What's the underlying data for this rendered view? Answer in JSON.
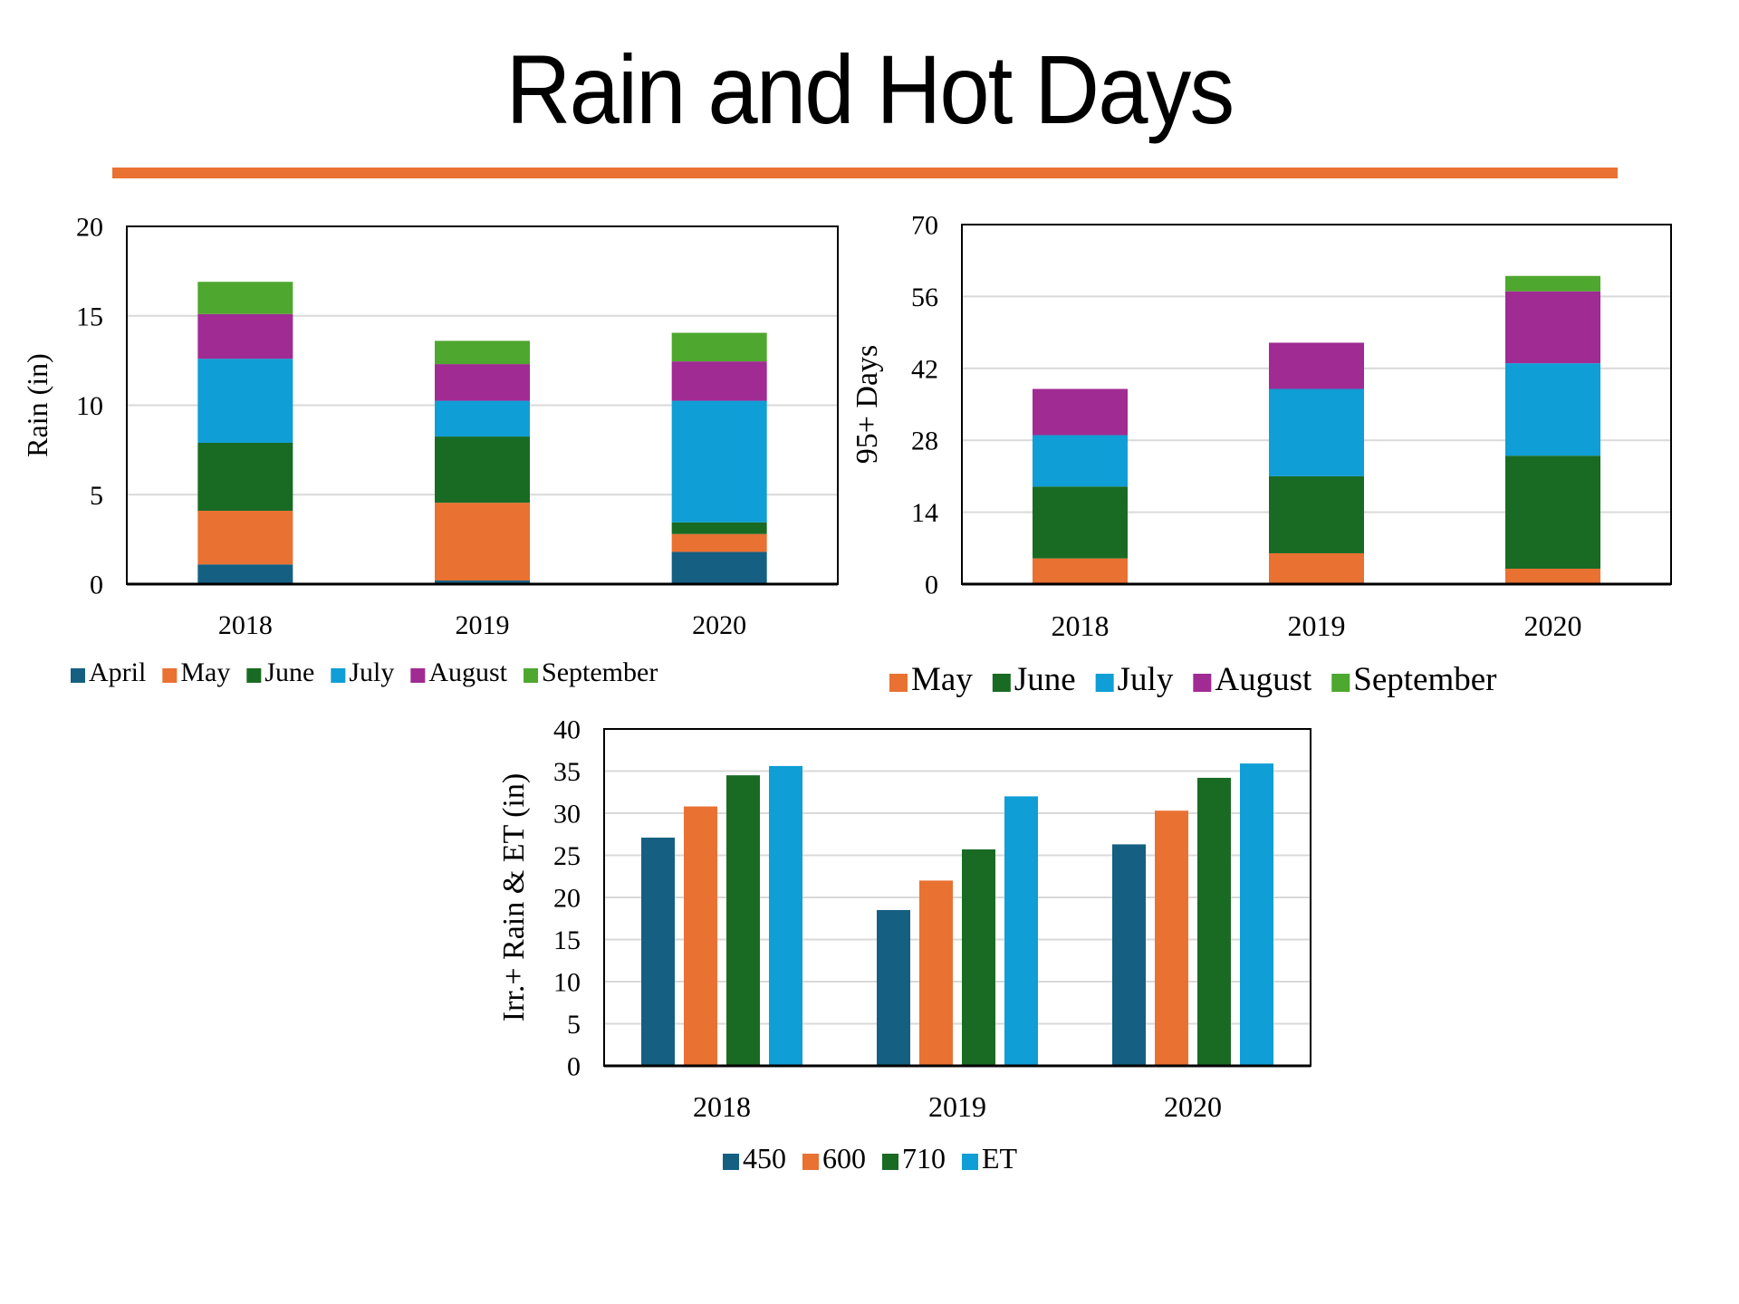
{
  "page": {
    "title": "Rain and Hot Days",
    "accent_color": "#E97132"
  },
  "colors": {
    "April": "#156082",
    "May": "#E97132",
    "June": "#196B24",
    "July": "#0F9ED5",
    "August": "#A02B93",
    "September": "#4EA72E",
    "450": "#156082",
    "600": "#E97132",
    "710": "#196B24",
    "ET": "#0F9ED5"
  },
  "chart_data": [
    {
      "id": "rain",
      "type": "bar",
      "stacked": true,
      "title": "",
      "xlabel": "",
      "ylabel": "Rain (in)",
      "categories": [
        "2018",
        "2019",
        "2020"
      ],
      "ylim": [
        0,
        20
      ],
      "yticks": [
        0,
        5,
        10,
        15,
        20
      ],
      "grid": true,
      "legend": "bottom",
      "series": [
        {
          "name": "April",
          "values": [
            1.1,
            0.2,
            1.8
          ]
        },
        {
          "name": "May",
          "values": [
            3.0,
            4.35,
            1.0
          ]
        },
        {
          "name": "June",
          "values": [
            3.8,
            3.7,
            0.65
          ]
        },
        {
          "name": "July",
          "values": [
            4.7,
            2.0,
            6.8
          ]
        },
        {
          "name": "August",
          "values": [
            2.5,
            2.05,
            2.2
          ]
        },
        {
          "name": "September",
          "values": [
            1.8,
            1.3,
            1.6
          ]
        }
      ]
    },
    {
      "id": "hotdays",
      "type": "bar",
      "stacked": true,
      "title": "",
      "xlabel": "",
      "ylabel": "95+ Days",
      "categories": [
        "2018",
        "2019",
        "2020"
      ],
      "ylim": [
        0,
        70
      ],
      "yticks": [
        0,
        14,
        28,
        42,
        56,
        70
      ],
      "grid": true,
      "legend": "bottom",
      "series": [
        {
          "name": "May",
          "values": [
            5,
            6,
            3
          ]
        },
        {
          "name": "June",
          "values": [
            14,
            15,
            22
          ]
        },
        {
          "name": "July",
          "values": [
            10,
            17,
            18
          ]
        },
        {
          "name": "August",
          "values": [
            9,
            9,
            14
          ]
        },
        {
          "name": "September",
          "values": [
            0,
            0,
            3
          ]
        }
      ]
    },
    {
      "id": "irrigation",
      "type": "bar",
      "stacked": false,
      "title": "",
      "xlabel": "",
      "ylabel": "Irr.+ Rain & ET (in)",
      "categories": [
        "2018",
        "2019",
        "2020"
      ],
      "ylim": [
        0,
        40
      ],
      "yticks": [
        0,
        5,
        10,
        15,
        20,
        25,
        30,
        35,
        40
      ],
      "grid": true,
      "legend": "bottom",
      "series": [
        {
          "name": "450",
          "values": [
            27.1,
            18.5,
            26.3
          ]
        },
        {
          "name": "600",
          "values": [
            30.8,
            22.0,
            30.3
          ]
        },
        {
          "name": "710",
          "values": [
            34.5,
            25.7,
            34.2
          ]
        },
        {
          "name": "ET",
          "values": [
            35.6,
            32.0,
            35.9
          ]
        }
      ]
    }
  ]
}
